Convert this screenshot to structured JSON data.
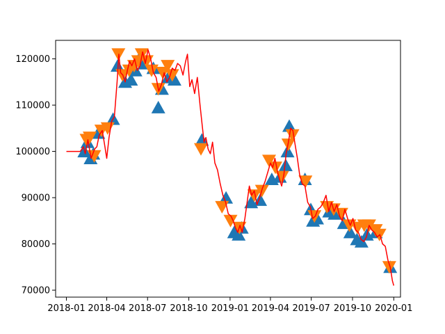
{
  "chart_data": {
    "type": "line",
    "title": "",
    "xlabel": "",
    "ylabel": "",
    "x_range": [
      "2017-12-08",
      "2020-01-16"
    ],
    "y_range": [
      68500,
      124000
    ],
    "grid": false,
    "legend": "none",
    "x_ticks": [
      {
        "date": "2018-01-01",
        "label": "2018-01"
      },
      {
        "date": "2018-04-01",
        "label": "2018-04"
      },
      {
        "date": "2018-07-01",
        "label": "2018-07"
      },
      {
        "date": "2018-10-01",
        "label": "2018-10"
      },
      {
        "date": "2019-01-01",
        "label": "2019-01"
      },
      {
        "date": "2019-04-01",
        "label": "2019-04"
      },
      {
        "date": "2019-07-01",
        "label": "2019-07"
      },
      {
        "date": "2019-10-01",
        "label": "2019-10"
      },
      {
        "date": "2020-01-01",
        "label": "2020-01"
      }
    ],
    "y_ticks": [
      {
        "value": 70000,
        "label": "70000"
      },
      {
        "value": 80000,
        "label": "80000"
      },
      {
        "value": 90000,
        "label": "90000"
      },
      {
        "value": 100000,
        "label": "100000"
      },
      {
        "value": 110000,
        "label": "110000"
      },
      {
        "value": 120000,
        "label": "120000"
      }
    ],
    "series": [
      {
        "kind": "line",
        "color": "#ff0000",
        "points": [
          [
            "2018-01-01",
            100000
          ],
          [
            "2018-02-01",
            100000
          ],
          [
            "2018-02-08",
            101000
          ],
          [
            "2018-02-12",
            99500
          ],
          [
            "2018-02-18",
            102500
          ],
          [
            "2018-02-25",
            98500
          ],
          [
            "2018-03-05",
            100500
          ],
          [
            "2018-03-10",
            101000
          ],
          [
            "2018-03-15",
            103500
          ],
          [
            "2018-03-22",
            104500
          ],
          [
            "2018-03-28",
            101000
          ],
          [
            "2018-04-01",
            98500
          ],
          [
            "2018-04-06",
            103000
          ],
          [
            "2018-04-12",
            106500
          ],
          [
            "2018-04-18",
            107500
          ],
          [
            "2018-04-24",
            115000
          ],
          [
            "2018-04-28",
            121000
          ],
          [
            "2018-05-02",
            117000
          ],
          [
            "2018-05-07",
            116500
          ],
          [
            "2018-05-12",
            115000
          ],
          [
            "2018-05-17",
            117500
          ],
          [
            "2018-05-22",
            119500
          ],
          [
            "2018-05-27",
            118500
          ],
          [
            "2018-06-02",
            120000
          ],
          [
            "2018-06-08",
            117500
          ],
          [
            "2018-06-14",
            118500
          ],
          [
            "2018-06-20",
            121500
          ],
          [
            "2018-06-26",
            119000
          ],
          [
            "2018-07-02",
            122000
          ],
          [
            "2018-07-08",
            120000
          ],
          [
            "2018-07-14",
            117000
          ],
          [
            "2018-07-20",
            116000
          ],
          [
            "2018-07-26",
            113000
          ],
          [
            "2018-08-01",
            114500
          ],
          [
            "2018-08-07",
            117000
          ],
          [
            "2018-08-13",
            115000
          ],
          [
            "2018-08-19",
            116000
          ],
          [
            "2018-08-25",
            118000
          ],
          [
            "2018-08-31",
            117500
          ],
          [
            "2018-09-06",
            119000
          ],
          [
            "2018-09-12",
            118500
          ],
          [
            "2018-09-18",
            116500
          ],
          [
            "2018-09-24",
            119500
          ],
          [
            "2018-09-28",
            121000
          ],
          [
            "2018-10-03",
            114000
          ],
          [
            "2018-10-08",
            115500
          ],
          [
            "2018-10-14",
            112500
          ],
          [
            "2018-10-20",
            116000
          ],
          [
            "2018-10-26",
            110000
          ],
          [
            "2018-10-31",
            105500
          ],
          [
            "2018-11-04",
            102000
          ],
          [
            "2018-11-08",
            103000
          ],
          [
            "2018-11-13",
            100500
          ],
          [
            "2018-11-18",
            99500
          ],
          [
            "2018-11-23",
            102000
          ],
          [
            "2018-11-28",
            97500
          ],
          [
            "2018-12-04",
            96000
          ],
          [
            "2018-12-10",
            93000
          ],
          [
            "2018-12-16",
            90500
          ],
          [
            "2018-12-22",
            89000
          ],
          [
            "2018-12-28",
            86500
          ],
          [
            "2019-01-03",
            86000
          ],
          [
            "2019-01-08",
            85000
          ],
          [
            "2019-01-13",
            83500
          ],
          [
            "2019-01-18",
            82500
          ],
          [
            "2019-01-23",
            84000
          ],
          [
            "2019-01-28",
            82500
          ],
          [
            "2019-02-03",
            85500
          ],
          [
            "2019-02-08",
            89000
          ],
          [
            "2019-02-13",
            92500
          ],
          [
            "2019-02-18",
            90500
          ],
          [
            "2019-02-24",
            91500
          ],
          [
            "2019-03-02",
            88500
          ],
          [
            "2019-03-08",
            90000
          ],
          [
            "2019-03-14",
            92000
          ],
          [
            "2019-03-20",
            93500
          ],
          [
            "2019-03-26",
            95500
          ],
          [
            "2019-04-01",
            97500
          ],
          [
            "2019-04-06",
            96500
          ],
          [
            "2019-04-11",
            98500
          ],
          [
            "2019-04-16",
            96000
          ],
          [
            "2019-04-21",
            94000
          ],
          [
            "2019-04-26",
            92500
          ],
          [
            "2019-05-01",
            95000
          ],
          [
            "2019-05-06",
            99500
          ],
          [
            "2019-05-11",
            102000
          ],
          [
            "2019-05-16",
            105000
          ],
          [
            "2019-05-21",
            104500
          ],
          [
            "2019-05-26",
            101500
          ],
          [
            "2019-05-31",
            98500
          ],
          [
            "2019-06-05",
            95000
          ],
          [
            "2019-06-11",
            93000
          ],
          [
            "2019-06-17",
            92500
          ],
          [
            "2019-06-23",
            89000
          ],
          [
            "2019-06-29",
            88000
          ],
          [
            "2019-07-04",
            85500
          ],
          [
            "2019-07-10",
            86000
          ],
          [
            "2019-07-16",
            87500
          ],
          [
            "2019-07-22",
            88000
          ],
          [
            "2019-07-28",
            89000
          ],
          [
            "2019-08-03",
            90500
          ],
          [
            "2019-08-09",
            87000
          ],
          [
            "2019-08-15",
            89000
          ],
          [
            "2019-08-21",
            87000
          ],
          [
            "2019-08-27",
            88500
          ],
          [
            "2019-09-02",
            86000
          ],
          [
            "2019-09-08",
            85000
          ],
          [
            "2019-09-14",
            87500
          ],
          [
            "2019-09-20",
            85500
          ],
          [
            "2019-09-26",
            84000
          ],
          [
            "2019-10-02",
            85500
          ],
          [
            "2019-10-08",
            83000
          ],
          [
            "2019-10-14",
            82500
          ],
          [
            "2019-10-20",
            81000
          ],
          [
            "2019-10-26",
            80500
          ],
          [
            "2019-11-01",
            81500
          ],
          [
            "2019-11-07",
            84000
          ],
          [
            "2019-11-13",
            83000
          ],
          [
            "2019-11-19",
            82500
          ],
          [
            "2019-11-25",
            81500
          ],
          [
            "2019-12-01",
            82000
          ],
          [
            "2019-12-07",
            80000
          ],
          [
            "2019-12-13",
            79500
          ],
          [
            "2019-12-19",
            76500
          ],
          [
            "2019-12-24",
            75000
          ],
          [
            "2019-12-29",
            72000
          ],
          [
            "2020-01-01",
            71000
          ]
        ]
      },
      {
        "kind": "scatter",
        "marker": "triangle-up",
        "color": "#1f77b4",
        "points": [
          [
            "2018-02-10",
            100000
          ],
          [
            "2018-02-17",
            102000
          ],
          [
            "2018-02-24",
            98500
          ],
          [
            "2018-03-02",
            99500
          ],
          [
            "2018-03-13",
            104000
          ],
          [
            "2018-04-15",
            107000
          ],
          [
            "2018-04-25",
            118500
          ],
          [
            "2018-05-12",
            115000
          ],
          [
            "2018-05-25",
            115500
          ],
          [
            "2018-06-04",
            117500
          ],
          [
            "2018-06-12",
            120000
          ],
          [
            "2018-06-24",
            119000
          ],
          [
            "2018-07-14",
            118000
          ],
          [
            "2018-07-25",
            109500
          ],
          [
            "2018-08-02",
            113500
          ],
          [
            "2018-08-16",
            116000
          ],
          [
            "2018-08-30",
            115500
          ],
          [
            "2018-10-30",
            102500
          ],
          [
            "2018-12-23",
            90000
          ],
          [
            "2019-01-10",
            82500
          ],
          [
            "2019-01-20",
            82000
          ],
          [
            "2019-01-27",
            83500
          ],
          [
            "2019-02-17",
            89000
          ],
          [
            "2019-03-09",
            89500
          ],
          [
            "2019-04-04",
            94000
          ],
          [
            "2019-04-22",
            94500
          ],
          [
            "2019-05-05",
            97000
          ],
          [
            "2019-05-09",
            100000
          ],
          [
            "2019-05-13",
            105500
          ],
          [
            "2019-06-17",
            94000
          ],
          [
            "2019-06-30",
            87500
          ],
          [
            "2019-07-05",
            85000
          ],
          [
            "2019-07-14",
            85500
          ],
          [
            "2019-08-10",
            87000
          ],
          [
            "2019-08-22",
            86500
          ],
          [
            "2019-09-12",
            84500
          ],
          [
            "2019-09-26",
            82500
          ],
          [
            "2019-10-11",
            81000
          ],
          [
            "2019-10-21",
            80500
          ],
          [
            "2019-11-02",
            82000
          ],
          [
            "2019-11-22",
            82500
          ],
          [
            "2019-12-24",
            75000
          ]
        ]
      },
      {
        "kind": "scatter",
        "marker": "triangle-down",
        "color": "#ff7f0e",
        "points": [
          [
            "2018-02-15",
            102500
          ],
          [
            "2018-02-22",
            103000
          ],
          [
            "2018-03-04",
            99000
          ],
          [
            "2018-03-20",
            104500
          ],
          [
            "2018-04-03",
            105000
          ],
          [
            "2018-04-27",
            121000
          ],
          [
            "2018-05-06",
            116500
          ],
          [
            "2018-05-21",
            117500
          ],
          [
            "2018-06-01",
            118500
          ],
          [
            "2018-06-10",
            119500
          ],
          [
            "2018-06-18",
            121000
          ],
          [
            "2018-06-29",
            119500
          ],
          [
            "2018-07-10",
            117500
          ],
          [
            "2018-07-25",
            113500
          ],
          [
            "2018-08-04",
            117000
          ],
          [
            "2018-08-15",
            118500
          ],
          [
            "2018-08-25",
            116500
          ],
          [
            "2018-10-28",
            100500
          ],
          [
            "2018-12-14",
            88000
          ],
          [
            "2019-01-02",
            85000
          ],
          [
            "2019-01-22",
            83500
          ],
          [
            "2019-02-24",
            90500
          ],
          [
            "2019-03-13",
            91500
          ],
          [
            "2019-03-29",
            98000
          ],
          [
            "2019-04-12",
            96500
          ],
          [
            "2019-04-27",
            94500
          ],
          [
            "2019-05-11",
            101500
          ],
          [
            "2019-05-20",
            103500
          ],
          [
            "2019-06-18",
            93500
          ],
          [
            "2019-07-08",
            86000
          ],
          [
            "2019-08-05",
            88000
          ],
          [
            "2019-08-20",
            87500
          ],
          [
            "2019-09-06",
            86500
          ],
          [
            "2019-09-24",
            84000
          ],
          [
            "2019-10-12",
            83500
          ],
          [
            "2019-10-27",
            84000
          ],
          [
            "2019-11-07",
            84000
          ],
          [
            "2019-11-22",
            83000
          ],
          [
            "2019-11-30",
            82000
          ],
          [
            "2019-12-22",
            75000
          ]
        ]
      }
    ]
  }
}
